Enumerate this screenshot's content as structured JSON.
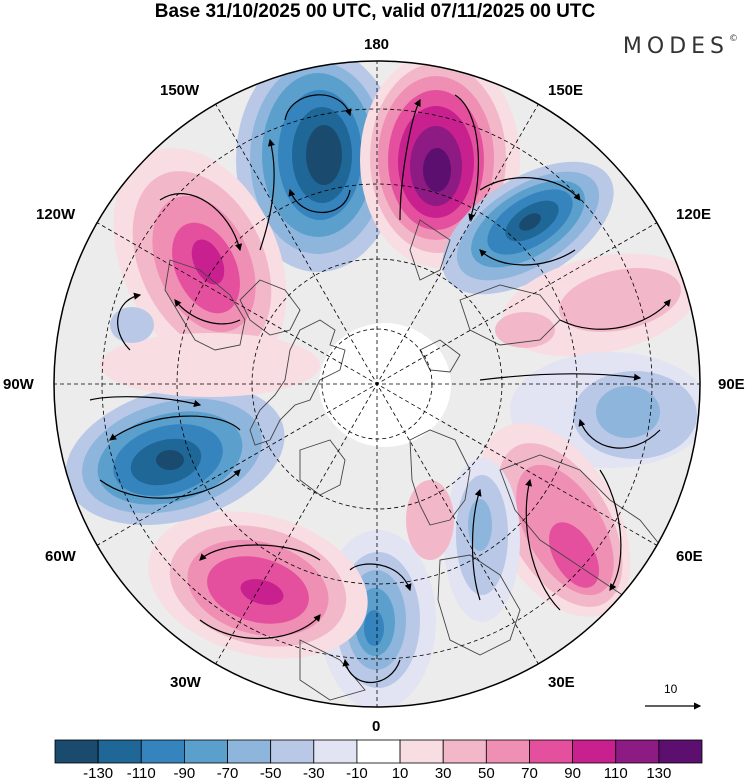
{
  "title": "Base 31/10/2025 00 UTC, valid 07/11/2025 00 UTC",
  "brand": "MODES",
  "brand_mark": "©",
  "longitude_labels": {
    "lon_180": "180",
    "lon_150e": "150E",
    "lon_120e": "120E",
    "lon_90e": "90E",
    "lon_60e": "60E",
    "lon_30e": "30E",
    "lon_0": "0",
    "lon_30w": "30W",
    "lon_60w": "60W",
    "lon_90w": "90W",
    "lon_120w": "120W",
    "lon_150w": "150W"
  },
  "vector_reference": {
    "value": "10"
  },
  "colorbar": {
    "labels": [
      "-130",
      "-110",
      "-90",
      "-70",
      "-50",
      "-30",
      "-10",
      "10",
      "30",
      "50",
      "70",
      "90",
      "110",
      "130"
    ],
    "colors": [
      "#1a4a6e",
      "#1f6797",
      "#3584bd",
      "#5b9fcd",
      "#8eb5dc",
      "#b8c8e6",
      "#e2e3f3",
      "#ffffff",
      "#f8dde2",
      "#f2b8c9",
      "#ef8fb4",
      "#e5509e",
      "#c8208f",
      "#8e1a84",
      "#5c0f6e"
    ]
  },
  "colors": {
    "land_outline": "#444444",
    "grid": "#000000",
    "neutral_fill": "#ececec"
  }
}
